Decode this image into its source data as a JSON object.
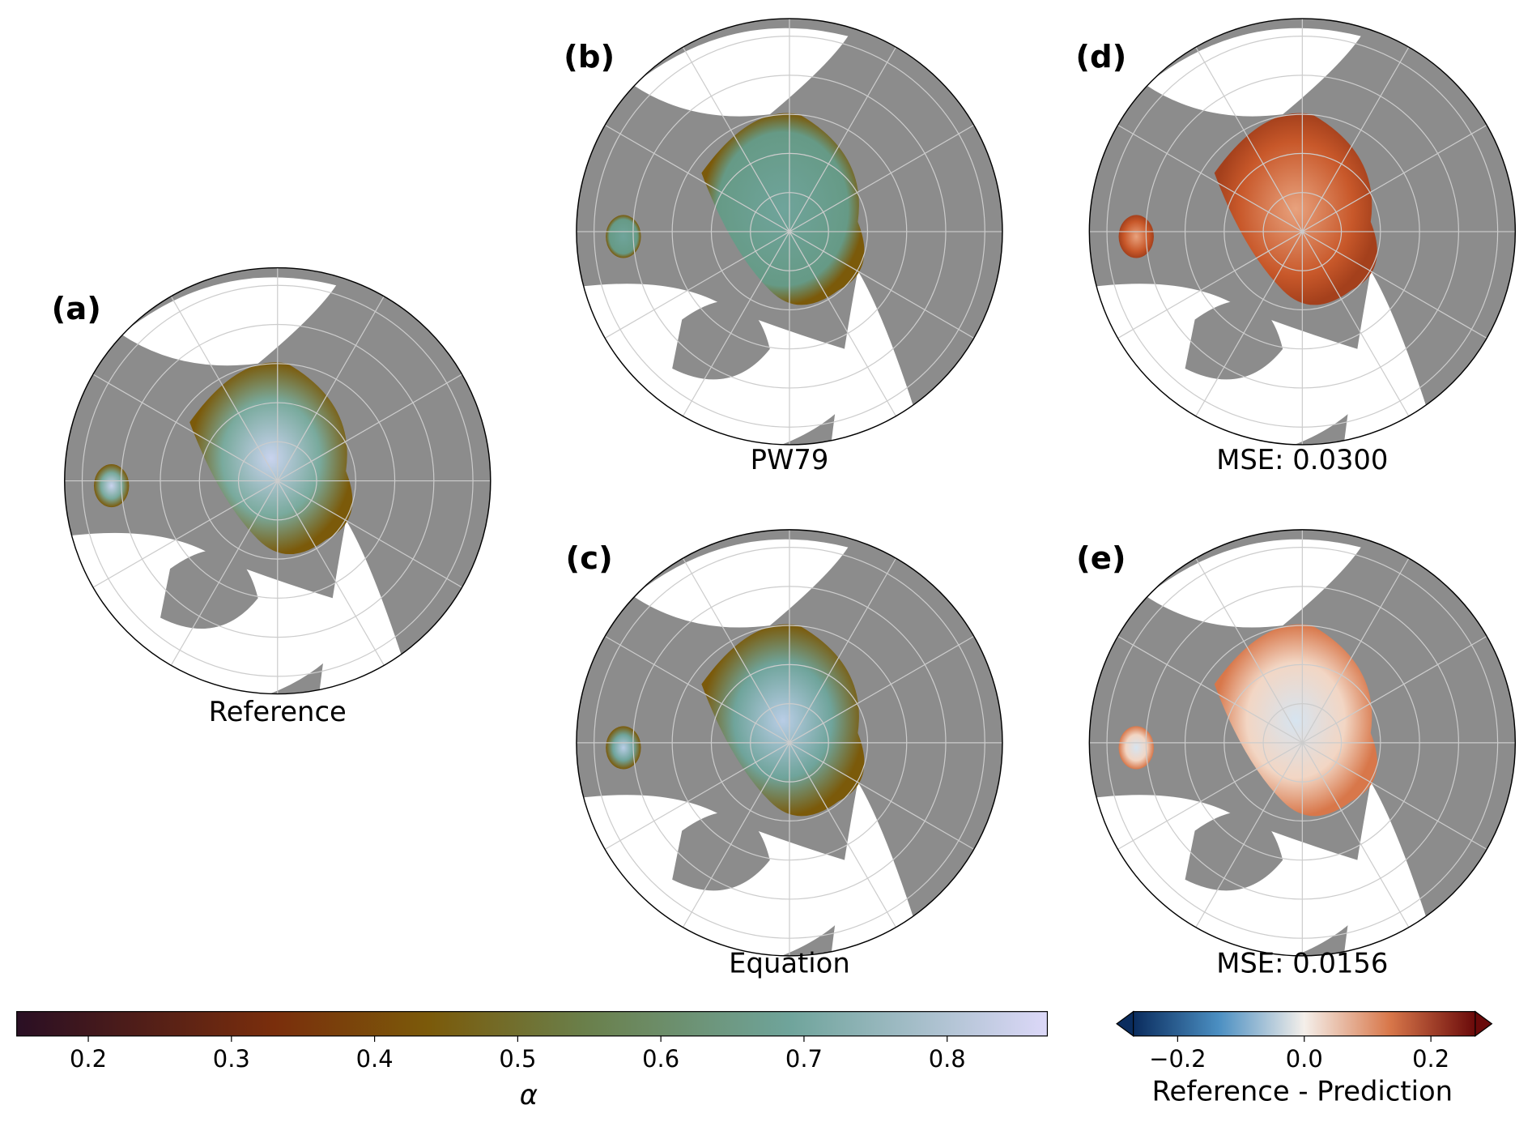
{
  "panels": [
    {
      "label": "(a)",
      "caption": "Reference"
    },
    {
      "label": "(b)",
      "caption": "PW79"
    },
    {
      "label": "(c)",
      "caption": "Equation"
    },
    {
      "label": "(d)",
      "caption": "MSE: 0.0300"
    },
    {
      "label": "(e)",
      "caption": "MSE: 0.0156"
    }
  ],
  "colorbars": [
    {
      "label": "α",
      "lim": [
        0.15,
        0.87
      ],
      "ticks": [
        0.2,
        0.3,
        0.4,
        0.5,
        0.6,
        0.7,
        0.8
      ]
    },
    {
      "label": "Reference - Prediction",
      "lim": [
        -0.27,
        0.27
      ],
      "extend": "both",
      "ticks": [
        {
          "value": -0.2,
          "label": "−0.2"
        },
        {
          "value": 0,
          "label": "0.0"
        },
        {
          "value": 0.2,
          "label": "0.2"
        }
      ]
    }
  ]
}
